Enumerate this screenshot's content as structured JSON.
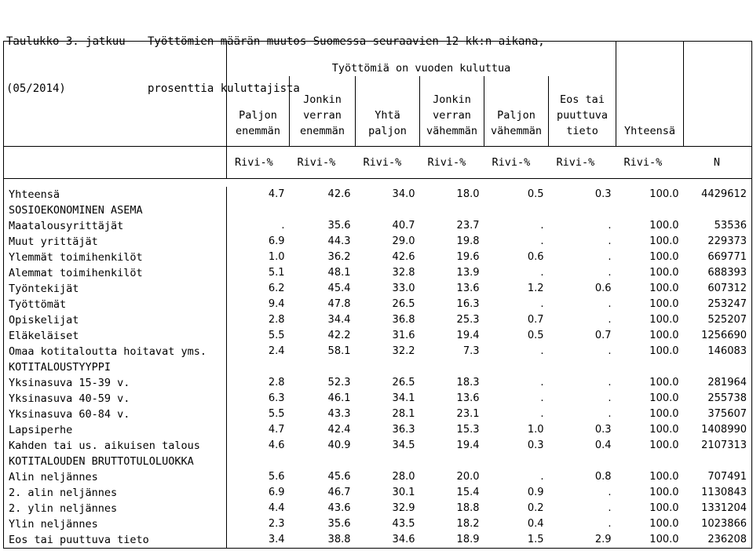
{
  "title": {
    "line1_prefix": "Taulukko 3. jatkuu",
    "line1_text": "Työttömien määrän muutos Suomessa seuraavien 12 kk:n aikana,",
    "line2_prefix": "(05/2014)",
    "line2_text": "prosenttia kuluttajista"
  },
  "header": {
    "group_label": "Työttömiä on vuoden kuluttua",
    "columns": [
      {
        "l1": "",
        "l2": "Paljon",
        "l3": "enemmän"
      },
      {
        "l1": "Jonkin",
        "l2": "verran",
        "l3": "enemmän"
      },
      {
        "l1": "",
        "l2": "Yhtä",
        "l3": "paljon"
      },
      {
        "l1": "Jonkin",
        "l2": "verran",
        "l3": "vähemmän"
      },
      {
        "l1": "",
        "l2": "Paljon",
        "l3": "vähemmän"
      },
      {
        "l1": "Eos tai",
        "l2": "puuttuva",
        "l3": "tieto"
      }
    ],
    "total_label": "Yhteensä",
    "units": [
      "Rivi-%",
      "Rivi-%",
      "Rivi-%",
      "Rivi-%",
      "Rivi-%",
      "Rivi-%",
      "Rivi-%",
      "N"
    ]
  },
  "rows": [
    {
      "label": "Yhteensä",
      "values": [
        "4.7",
        "42.6",
        "34.0",
        "18.0",
        "0.5",
        "0.3",
        "100.0",
        "4429612"
      ]
    },
    {
      "label": "SOSIOEKONOMINEN ASEMA",
      "values": [
        "",
        "",
        "",
        "",
        "",
        "",
        "",
        ""
      ]
    },
    {
      "label": "Maatalousyrittäjät",
      "values": [
        ".",
        "35.6",
        "40.7",
        "23.7",
        ".",
        ".",
        "100.0",
        "53536"
      ]
    },
    {
      "label": "Muut yrittäjät",
      "values": [
        "6.9",
        "44.3",
        "29.0",
        "19.8",
        ".",
        ".",
        "100.0",
        "229373"
      ]
    },
    {
      "label": "Ylemmät toimihenkilöt",
      "values": [
        "1.0",
        "36.2",
        "42.6",
        "19.6",
        "0.6",
        ".",
        "100.0",
        "669771"
      ]
    },
    {
      "label": "Alemmat toimihenkilöt",
      "values": [
        "5.1",
        "48.1",
        "32.8",
        "13.9",
        ".",
        ".",
        "100.0",
        "688393"
      ]
    },
    {
      "label": "Työntekijät",
      "values": [
        "6.2",
        "45.4",
        "33.0",
        "13.6",
        "1.2",
        "0.6",
        "100.0",
        "607312"
      ]
    },
    {
      "label": "Työttömät",
      "values": [
        "9.4",
        "47.8",
        "26.5",
        "16.3",
        ".",
        ".",
        "100.0",
        "253247"
      ]
    },
    {
      "label": "Opiskelijat",
      "values": [
        "2.8",
        "34.4",
        "36.8",
        "25.3",
        "0.7",
        ".",
        "100.0",
        "525207"
      ]
    },
    {
      "label": "Eläkeläiset",
      "values": [
        "5.5",
        "42.2",
        "31.6",
        "19.4",
        "0.5",
        "0.7",
        "100.0",
        "1256690"
      ]
    },
    {
      "label": "Omaa kotitaloutta hoitavat yms.",
      "values": [
        "2.4",
        "58.1",
        "32.2",
        "7.3",
        ".",
        ".",
        "100.0",
        "146083"
      ]
    },
    {
      "label": "KOTITALOUSTYYPPI",
      "values": [
        "",
        "",
        "",
        "",
        "",
        "",
        "",
        ""
      ]
    },
    {
      "label": "Yksinasuva 15-39 v.",
      "values": [
        "2.8",
        "52.3",
        "26.5",
        "18.3",
        ".",
        ".",
        "100.0",
        "281964"
      ]
    },
    {
      "label": "Yksinasuva 40-59 v.",
      "values": [
        "6.3",
        "46.1",
        "34.1",
        "13.6",
        ".",
        ".",
        "100.0",
        "255738"
      ]
    },
    {
      "label": "Yksinasuva 60-84 v.",
      "values": [
        "5.5",
        "43.3",
        "28.1",
        "23.1",
        ".",
        ".",
        "100.0",
        "375607"
      ]
    },
    {
      "label": "Lapsiperhe",
      "values": [
        "4.7",
        "42.4",
        "36.3",
        "15.3",
        "1.0",
        "0.3",
        "100.0",
        "1408990"
      ]
    },
    {
      "label": "Kahden tai us. aikuisen talous",
      "values": [
        "4.6",
        "40.9",
        "34.5",
        "19.4",
        "0.3",
        "0.4",
        "100.0",
        "2107313"
      ]
    },
    {
      "label": "KOTITALOUDEN BRUTTOTULOLUOKKA",
      "values": [
        "",
        "",
        "",
        "",
        "",
        "",
        "",
        ""
      ]
    },
    {
      "label": "Alin neljännes",
      "values": [
        "5.6",
        "45.6",
        "28.0",
        "20.0",
        ".",
        "0.8",
        "100.0",
        "707491"
      ]
    },
    {
      "label": "2. alin neljännes",
      "values": [
        "6.9",
        "46.7",
        "30.1",
        "15.4",
        "0.9",
        ".",
        "100.0",
        "1130843"
      ]
    },
    {
      "label": "2. ylin neljännes",
      "values": [
        "4.4",
        "43.6",
        "32.9",
        "18.8",
        "0.2",
        ".",
        "100.0",
        "1331204"
      ]
    },
    {
      "label": "Ylin neljännes",
      "values": [
        "2.3",
        "35.6",
        "43.5",
        "18.2",
        "0.4",
        ".",
        "100.0",
        "1023866"
      ]
    },
    {
      "label": "Eos tai puuttuva tieto",
      "values": [
        "3.4",
        "38.8",
        "34.6",
        "18.9",
        "1.5",
        "2.9",
        "100.0",
        "236208"
      ]
    }
  ]
}
